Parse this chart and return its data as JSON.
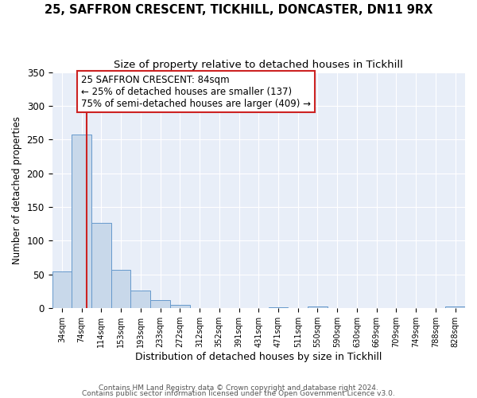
{
  "title": "25, SAFFRON CRESCENT, TICKHILL, DONCASTER, DN11 9RX",
  "subtitle": "Size of property relative to detached houses in Tickhill",
  "xlabel": "Distribution of detached houses by size in Tickhill",
  "ylabel": "Number of detached properties",
  "bin_labels": [
    "34sqm",
    "74sqm",
    "114sqm",
    "153sqm",
    "193sqm",
    "233sqm",
    "272sqm",
    "312sqm",
    "352sqm",
    "391sqm",
    "431sqm",
    "471sqm",
    "511sqm",
    "550sqm",
    "590sqm",
    "630sqm",
    "669sqm",
    "709sqm",
    "749sqm",
    "788sqm",
    "828sqm"
  ],
  "bin_values": [
    55,
    257,
    126,
    57,
    26,
    12,
    5,
    0,
    0,
    0,
    0,
    2,
    0,
    3,
    0,
    0,
    0,
    0,
    0,
    0,
    3
  ],
  "bar_color": "#c8d8ea",
  "bar_edge_color": "#6699cc",
  "red_line_x": 1.25,
  "annotation_title": "25 SAFFRON CRESCENT: 84sqm",
  "annotation_line1": "← 25% of detached houses are smaller (137)",
  "annotation_line2": "75% of semi-detached houses are larger (409) →",
  "annotation_box_color": "#ffffff",
  "annotation_box_edge": "#cc2222",
  "footer1": "Contains HM Land Registry data © Crown copyright and database right 2024.",
  "footer2": "Contains public sector information licensed under the Open Government Licence v3.0.",
  "ylim": [
    0,
    350
  ],
  "plot_bg_color": "#e8eef8",
  "fig_bg_color": "#ffffff",
  "grid_color": "#ffffff",
  "title_fontsize": 10.5,
  "subtitle_fontsize": 9.5
}
